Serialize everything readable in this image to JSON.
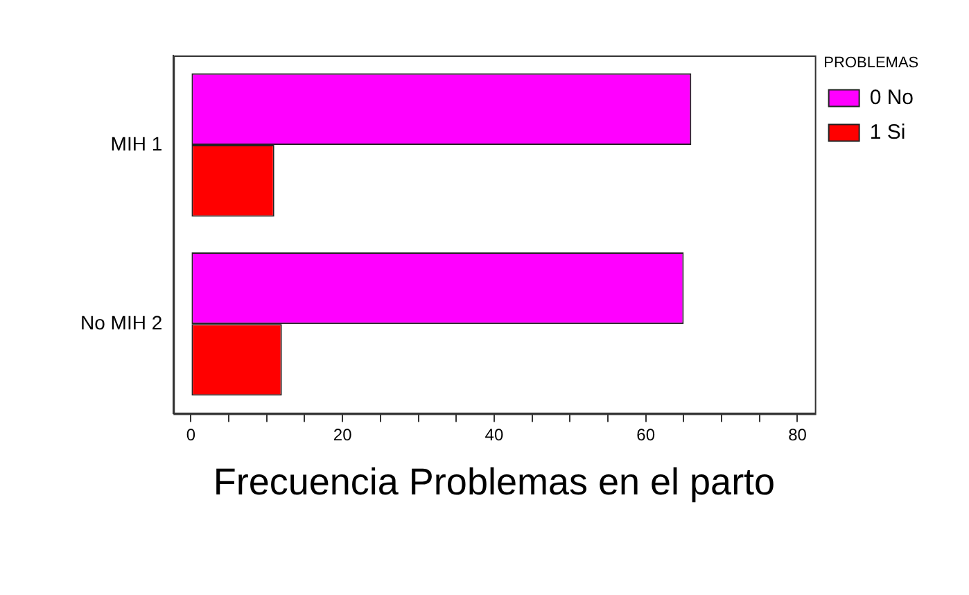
{
  "chart_data": {
    "type": "bar",
    "orientation": "horizontal",
    "xlabel": "Frecuencia Problemas en el parto",
    "legend_title": "PROBLEMAS",
    "categories": [
      "MIH 1",
      "No MIH 2"
    ],
    "series": [
      {
        "name": "0 No",
        "color": "#ff00ff",
        "values": [
          66,
          65
        ]
      },
      {
        "name": "1 Si",
        "color": "#ff0000",
        "values": [
          11,
          12
        ]
      }
    ],
    "xlim": [
      -2.3,
      82.3
    ],
    "xticks": [
      0,
      {
        "value": 5,
        "label": null
      },
      {
        "value": 10,
        "label": null
      },
      {
        "value": 15,
        "label": null
      },
      20,
      {
        "value": 25,
        "label": null
      },
      {
        "value": 30,
        "label": null
      },
      {
        "value": 35,
        "label": null
      },
      40,
      {
        "value": 45,
        "label": null
      },
      {
        "value": 50,
        "label": null
      },
      {
        "value": 55,
        "label": null
      },
      60,
      {
        "value": 65,
        "label": null
      },
      {
        "value": 70,
        "label": null
      },
      {
        "value": 75,
        "label": null
      },
      80
    ],
    "grid": false,
    "legend": "top right"
  }
}
